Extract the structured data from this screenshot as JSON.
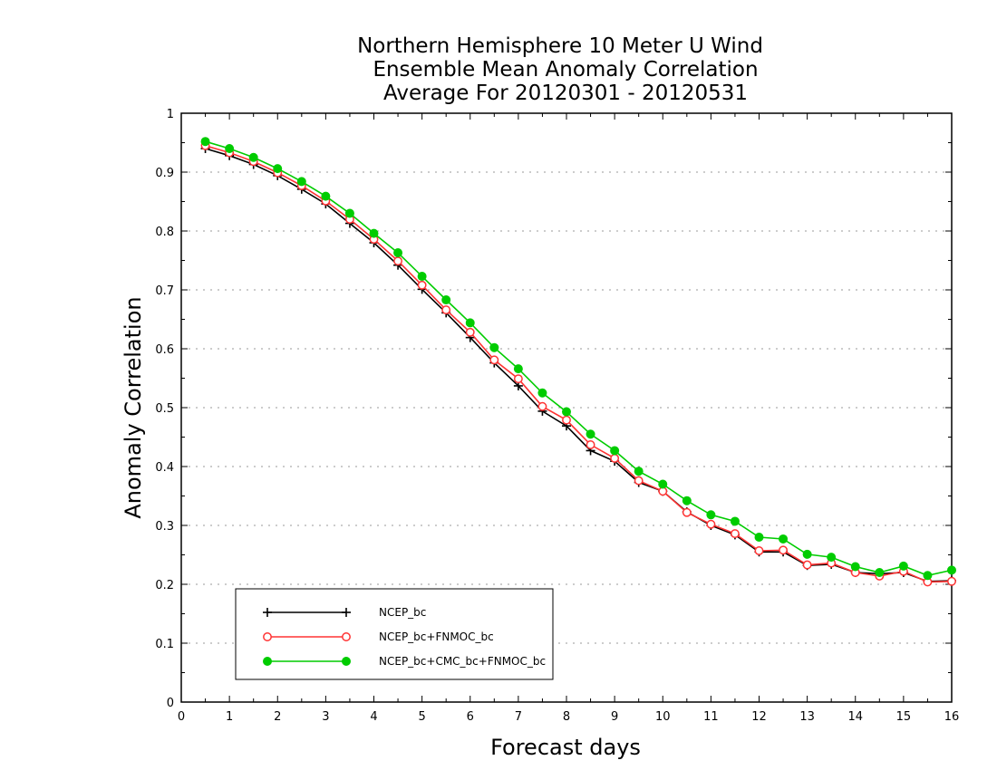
{
  "chart_data": {
    "type": "line",
    "title": [
      "Northern Hemisphere 10 Meter U Wind",
      "Ensemble Mean Anomaly Correlation",
      "Average For 20120301 - 20120531"
    ],
    "xlabel": "Forecast days",
    "ylabel": "Anomaly Correlation",
    "xlim": [
      0,
      16
    ],
    "ylim": [
      0,
      1
    ],
    "x_ticks": [
      0,
      1,
      2,
      3,
      4,
      5,
      6,
      7,
      8,
      9,
      10,
      11,
      12,
      13,
      14,
      15,
      16
    ],
    "y_ticks": [
      0,
      0.1,
      0.2,
      0.3,
      0.4,
      0.5,
      0.6,
      0.7,
      0.8,
      0.9,
      1
    ],
    "y_tick_labels": [
      "0",
      "0.1",
      "0.2",
      "0.3",
      "0.4",
      "0.5",
      "0.6",
      "0.7",
      "0.8",
      "0.9",
      "1"
    ],
    "grid": "horizontal dotted",
    "legend_position": "bottom-left",
    "x": [
      0.5,
      1,
      1.5,
      2,
      2.5,
      3,
      3.5,
      4,
      4.5,
      5,
      5.5,
      6,
      6.5,
      7,
      7.5,
      8,
      8.5,
      9,
      9.5,
      10,
      10.5,
      11,
      11.5,
      12,
      12.5,
      13,
      13.5,
      14,
      14.5,
      15,
      15.5,
      16
    ],
    "series": [
      {
        "name": "NCEP_bc",
        "color": "#000000",
        "marker": "plus",
        "values": [
          0.94,
          0.928,
          0.913,
          0.894,
          0.871,
          0.846,
          0.813,
          0.78,
          0.742,
          0.701,
          0.661,
          0.619,
          0.576,
          0.537,
          0.494,
          0.469,
          0.427,
          0.409,
          0.373,
          0.358,
          0.323,
          0.3,
          0.284,
          0.255,
          0.255,
          0.232,
          0.234,
          0.22,
          0.218,
          0.22,
          0.205,
          0.206
        ]
      },
      {
        "name": "NCEP_bc+FNMOC_bc",
        "color": "#ff3333",
        "marker": "open-circle",
        "values": [
          0.945,
          0.933,
          0.918,
          0.899,
          0.877,
          0.851,
          0.82,
          0.786,
          0.749,
          0.708,
          0.666,
          0.628,
          0.581,
          0.549,
          0.502,
          0.479,
          0.437,
          0.414,
          0.376,
          0.358,
          0.322,
          0.302,
          0.286,
          0.257,
          0.258,
          0.233,
          0.236,
          0.22,
          0.214,
          0.222,
          0.204,
          0.205
        ]
      },
      {
        "name": "NCEP_bc+CMC_bc+FNMOC_bc",
        "color": "#00cc00",
        "marker": "filled-circle",
        "values": [
          0.952,
          0.94,
          0.925,
          0.906,
          0.884,
          0.859,
          0.83,
          0.796,
          0.763,
          0.723,
          0.683,
          0.644,
          0.602,
          0.566,
          0.525,
          0.493,
          0.455,
          0.427,
          0.392,
          0.37,
          0.342,
          0.318,
          0.307,
          0.28,
          0.277,
          0.251,
          0.246,
          0.23,
          0.22,
          0.231,
          0.215,
          0.224
        ]
      }
    ]
  }
}
